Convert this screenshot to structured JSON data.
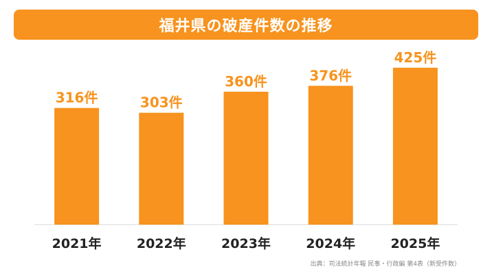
{
  "chart_data": {
    "type": "bar",
    "title": "福井県の破産件数の推移",
    "categories": [
      "2021年",
      "2022年",
      "2023年",
      "2024年",
      "2025年"
    ],
    "values": [
      316,
      303,
      360,
      376,
      425
    ],
    "value_labels": [
      "316件",
      "303件",
      "360件",
      "376件",
      "425件"
    ],
    "ylim": [
      0,
      460
    ],
    "grid": false,
    "colors": {
      "bar": "#f7931e",
      "label": "#f7931e",
      "title_bg": "#f7931e",
      "category": "#222222"
    }
  },
  "source_note": "出典：司法統計年報 民事・行政編 第4表（新受件数）"
}
